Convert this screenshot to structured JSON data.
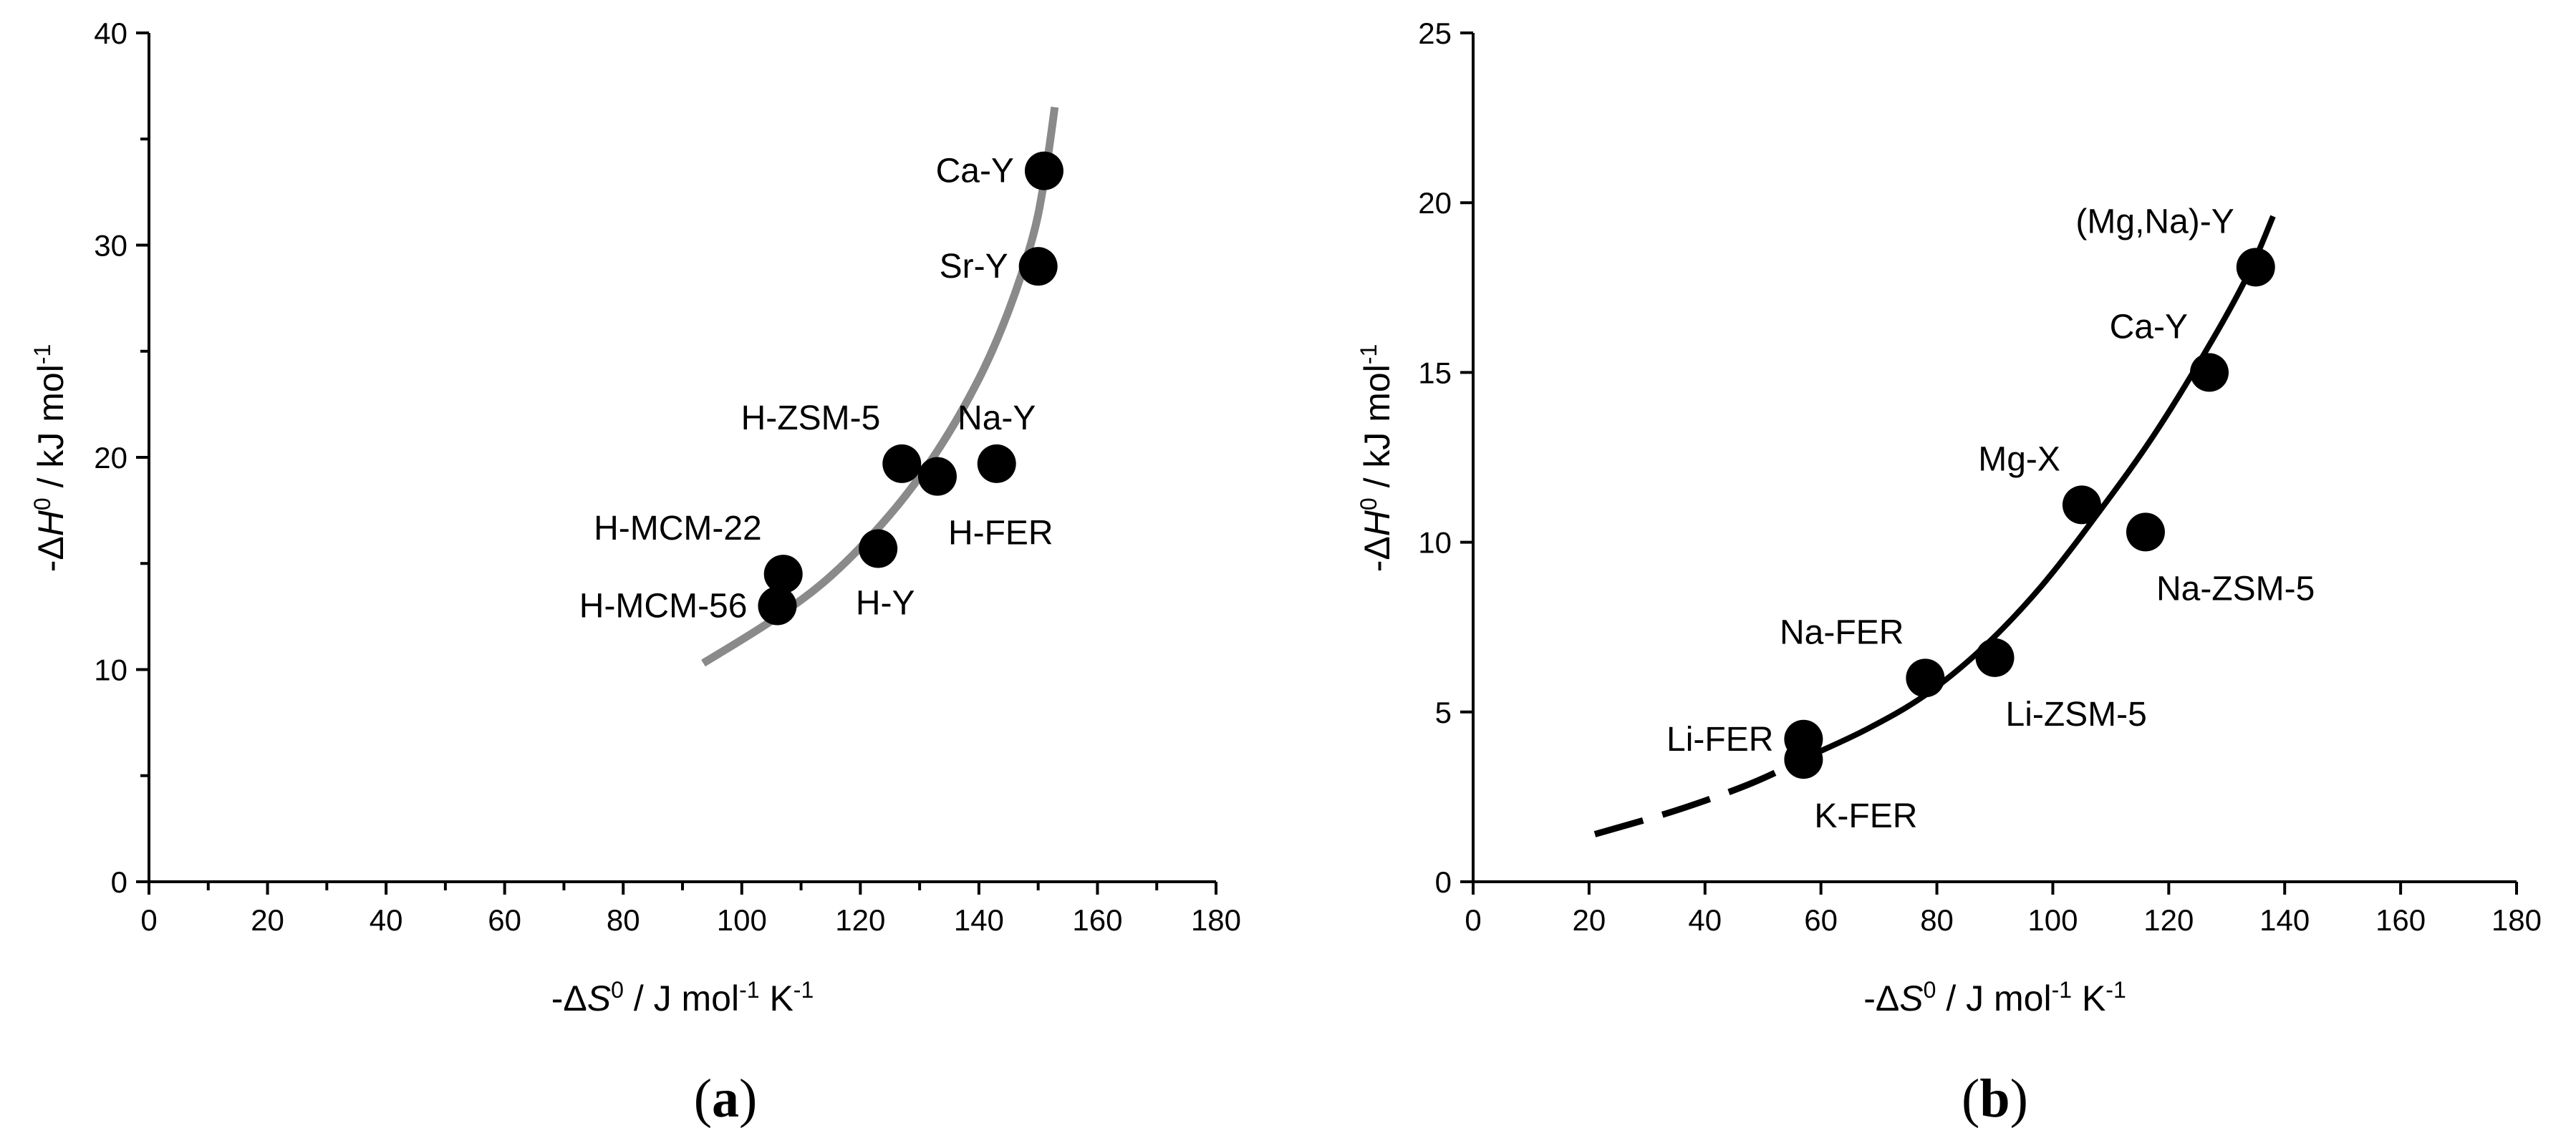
{
  "chart_data": [
    {
      "type": "scatter",
      "panel_label": "(a)",
      "panel_letter": "a",
      "xlabel": "-ΔS⁰ / J mol⁻¹ K⁻¹",
      "xlabel_parts": {
        "pre": "-Δ",
        "var": "S",
        "sup0": "0",
        "mid": " / J mol",
        "sup1": "-1",
        "mid2": " K",
        "sup2": "-1"
      },
      "ylabel": "-ΔH⁰ / kJ mol⁻¹",
      "ylabel_parts": {
        "pre": "-Δ",
        "var": "H",
        "sup0": "0",
        "mid": " / kJ mol",
        "sup1": "-1"
      },
      "xlim": [
        0,
        180
      ],
      "ylim": [
        0,
        40
      ],
      "xticks": [
        0,
        20,
        40,
        60,
        80,
        100,
        120,
        140,
        160,
        180
      ],
      "yticks": [
        0,
        10,
        20,
        30,
        40
      ],
      "x_minor_step": 10,
      "y_minor_step": 5,
      "points": [
        {
          "label": "Ca-Y",
          "x": 151,
          "y": 33.5,
          "label_pos": "left"
        },
        {
          "label": "Sr-Y",
          "x": 150,
          "y": 29.0,
          "label_pos": "left"
        },
        {
          "label": "Na-Y",
          "x": 143,
          "y": 19.7,
          "label_pos": "above"
        },
        {
          "label": "H-ZSM-5",
          "x": 127,
          "y": 19.7,
          "label_pos": "above-left"
        },
        {
          "label": "H-FER",
          "x": 133,
          "y": 19.1,
          "label_pos": "below-right"
        },
        {
          "label": "H-Y",
          "x": 123,
          "y": 15.7,
          "label_pos": "below"
        },
        {
          "label": "H-MCM-22",
          "x": 107,
          "y": 14.5,
          "label_pos": "above-left"
        },
        {
          "label": "H-MCM-56",
          "x": 106,
          "y": 13.0,
          "label_pos": "left"
        }
      ],
      "fit_curve": {
        "color": "#8a8a8a",
        "style": "solid",
        "points": [
          [
            93.5,
            10.3
          ],
          [
            105,
            12.3
          ],
          [
            115,
            14.4
          ],
          [
            125,
            17.3
          ],
          [
            133,
            20.3
          ],
          [
            140,
            23.7
          ],
          [
            145,
            26.9
          ],
          [
            149,
            30.3
          ],
          [
            151,
            33.0
          ],
          [
            152.8,
            36.5
          ]
        ]
      }
    },
    {
      "type": "scatter",
      "panel_label": "(b)",
      "panel_letter": "b",
      "xlabel": "-ΔS⁰ / J mol⁻¹ K⁻¹",
      "xlabel_parts": {
        "pre": "-Δ",
        "var": "S",
        "sup0": "0",
        "mid": " / J mol",
        "sup1": "-1",
        "mid2": " K",
        "sup2": "-1"
      },
      "ylabel": "-ΔH⁰ / kJ mol⁻¹",
      "ylabel_parts": {
        "pre": "-Δ",
        "var": "H",
        "sup0": "0",
        "mid": " / kJ mol",
        "sup1": "-1"
      },
      "xlim": [
        0,
        180
      ],
      "ylim": [
        0,
        25
      ],
      "xticks": [
        0,
        20,
        40,
        60,
        80,
        100,
        120,
        140,
        160,
        180
      ],
      "yticks": [
        0,
        5,
        10,
        15,
        20,
        25
      ],
      "points": [
        {
          "label": "(Mg,Na)-Y",
          "x": 135,
          "y": 18.1,
          "label_pos": "above-left"
        },
        {
          "label": "Ca-Y",
          "x": 127,
          "y": 15.0,
          "label_pos": "above-left"
        },
        {
          "label": "Mg-X",
          "x": 105,
          "y": 11.1,
          "label_pos": "above-left"
        },
        {
          "label": "Na-ZSM-5",
          "x": 116,
          "y": 10.3,
          "label_pos": "below-right"
        },
        {
          "label": "Na-FER",
          "x": 78,
          "y": 6.0,
          "label_pos": "above-left"
        },
        {
          "label": "Li-ZSM-5",
          "x": 90,
          "y": 6.6,
          "label_pos": "below-right"
        },
        {
          "label": "Li-FER",
          "x": 57,
          "y": 4.2,
          "label_pos": "left"
        },
        {
          "label": "K-FER",
          "x": 57,
          "y": 3.6,
          "label_pos": "below-right"
        }
      ],
      "fit_curve_dashed": {
        "color": "#000000",
        "style": "dashed",
        "points": [
          [
            21,
            1.4
          ],
          [
            35,
            2.1
          ],
          [
            48,
            2.9
          ],
          [
            58,
            3.7
          ]
        ]
      },
      "fit_curve": {
        "color": "#000000",
        "style": "solid",
        "points": [
          [
            58,
            3.7
          ],
          [
            68,
            4.5
          ],
          [
            78,
            5.5
          ],
          [
            88,
            6.9
          ],
          [
            98,
            8.7
          ],
          [
            108,
            10.9
          ],
          [
            118,
            13.3
          ],
          [
            128,
            16.1
          ],
          [
            134,
            18.0
          ],
          [
            138,
            19.6
          ]
        ]
      }
    }
  ]
}
